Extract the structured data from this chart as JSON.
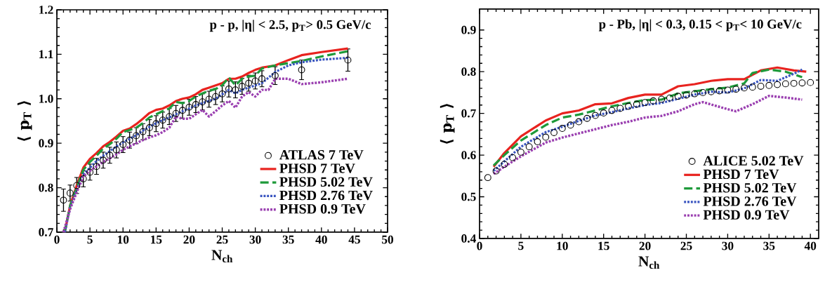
{
  "chart_data": [
    {
      "type": "line",
      "xlabel": "N$_{ch}$",
      "ylabel": "⟨ p$_{T}$ ⟩",
      "annotations": [
        "p - p,  |η| < 2.5,  p$_{T}$> 0.5 GeV/c"
      ],
      "xlim": [
        0,
        50
      ],
      "ylim": [
        0.7,
        1.2
      ],
      "xticks": [
        0,
        5,
        10,
        15,
        20,
        25,
        30,
        35,
        40,
        45,
        50
      ],
      "yticks": [
        0.7,
        0.8,
        0.9,
        {
          "value": 1,
          "label": "1.0"
        },
        1.1,
        1.2
      ],
      "legend": "bottom right",
      "series": [
        {
          "name": "ATLAS 7 TeV",
          "type": "scatter",
          "marker": "circle",
          "color": "#000000",
          "x": [
            1,
            2,
            3,
            4,
            5,
            6,
            7,
            8,
            9,
            10,
            11,
            12,
            13,
            14,
            15,
            16,
            17,
            18,
            19,
            20,
            21,
            22,
            23,
            24,
            25,
            26,
            27,
            28,
            29,
            30,
            31,
            33,
            37,
            44
          ],
          "values": [
            0.772,
            0.788,
            0.805,
            0.82,
            0.835,
            0.848,
            0.862,
            0.873,
            0.885,
            0.897,
            0.907,
            0.917,
            0.926,
            0.935,
            0.944,
            0.952,
            0.96,
            0.967,
            0.974,
            0.981,
            0.987,
            0.993,
            0.999,
            1.005,
            1.011,
            1.022,
            1.02,
            1.028,
            1.035,
            1.04,
            1.045,
            1.052,
            1.065,
            1.087
          ],
          "errors": [
            0.025,
            0.018,
            0.018,
            0.018,
            0.018,
            0.018,
            0.018,
            0.018,
            0.018,
            0.018,
            0.018,
            0.018,
            0.018,
            0.018,
            0.018,
            0.018,
            0.018,
            0.018,
            0.018,
            0.018,
            0.018,
            0.018,
            0.018,
            0.018,
            0.018,
            0.018,
            0.018,
            0.018,
            0.018,
            0.018,
            0.018,
            0.02,
            0.022,
            0.025
          ]
        },
        {
          "name": "PHSD 7 TeV",
          "line_style": "solid",
          "color": "#e8231f",
          "x": [
            1.2,
            2,
            3,
            4,
            5,
            6,
            7,
            8,
            9,
            10,
            11,
            12,
            13,
            14,
            15,
            16,
            17,
            18,
            19,
            20,
            21,
            22,
            23,
            24,
            25,
            26,
            27,
            28,
            29,
            30,
            31,
            33,
            35,
            37,
            40,
            44
          ],
          "values": [
            0.7,
            0.76,
            0.805,
            0.845,
            0.865,
            0.878,
            0.893,
            0.903,
            0.915,
            0.928,
            0.933,
            0.943,
            0.955,
            0.968,
            0.975,
            0.978,
            0.985,
            0.995,
            1.0,
            1.003,
            1.01,
            1.02,
            1.025,
            1.03,
            1.035,
            1.045,
            1.045,
            1.05,
            1.058,
            1.065,
            1.07,
            1.075,
            1.087,
            1.098,
            1.105,
            1.113
          ]
        },
        {
          "name": "PHSD 5.02 TeV",
          "line_style": "dashed",
          "color": "#1e9a3a",
          "x": [
            1.2,
            2,
            3,
            4,
            5,
            6,
            7,
            8,
            9,
            10,
            11,
            12,
            13,
            14,
            15,
            16,
            17,
            18,
            19,
            20,
            21,
            22,
            23,
            24,
            25,
            26,
            27,
            28,
            29,
            30,
            31,
            33,
            35,
            37,
            40,
            44
          ],
          "values": [
            0.7,
            0.76,
            0.8,
            0.84,
            0.858,
            0.872,
            0.888,
            0.898,
            0.91,
            0.925,
            0.93,
            0.935,
            0.945,
            0.958,
            0.965,
            0.972,
            0.978,
            0.993,
            0.99,
            0.995,
            1.005,
            1.012,
            1.018,
            1.022,
            1.03,
            1.048,
            1.03,
            1.045,
            1.05,
            1.052,
            1.068,
            1.075,
            1.08,
            1.085,
            1.095,
            1.107
          ]
        },
        {
          "name": "PHSD 2.76 TeV",
          "line_style": "dotted",
          "color": "#3a55c0",
          "x": [
            1.2,
            2,
            3,
            4,
            5,
            6,
            7,
            8,
            9,
            10,
            11,
            12,
            13,
            14,
            15,
            16,
            17,
            18,
            19,
            20,
            21,
            22,
            23,
            24,
            25,
            26,
            27,
            28,
            29,
            30,
            31,
            33,
            35,
            37,
            40,
            44
          ],
          "values": [
            0.7,
            0.755,
            0.795,
            0.83,
            0.845,
            0.86,
            0.872,
            0.882,
            0.893,
            0.902,
            0.91,
            0.918,
            0.928,
            0.937,
            0.945,
            0.952,
            0.958,
            0.965,
            0.972,
            0.978,
            0.985,
            0.99,
            0.995,
            1.0,
            1.01,
            1.02,
            1.012,
            1.02,
            1.025,
            1.03,
            1.035,
            1.06,
            1.075,
            1.082,
            1.088,
            1.092
          ]
        },
        {
          "name": "PHSD 0.9 TeV",
          "line_style": "dotted",
          "color": "#9a3fb0",
          "x": [
            1,
            2,
            3,
            4,
            5,
            6,
            7,
            8,
            9,
            10,
            11,
            12,
            13,
            14,
            15,
            16,
            17,
            18,
            19,
            20,
            21,
            22,
            23,
            24,
            25,
            26,
            27,
            28,
            29,
            30,
            31,
            32,
            33,
            35,
            37,
            40,
            44
          ],
          "values": [
            0.7,
            0.752,
            0.79,
            0.825,
            0.838,
            0.848,
            0.858,
            0.866,
            0.875,
            0.885,
            0.893,
            0.9,
            0.907,
            0.913,
            0.918,
            0.925,
            0.935,
            0.96,
            0.955,
            0.955,
            0.965,
            0.975,
            0.96,
            0.972,
            0.985,
            0.995,
            0.98,
            1.005,
            1.015,
            1.005,
            1.02,
            1.02,
            1.045,
            1.045,
            1.033,
            1.037,
            1.045
          ]
        }
      ]
    },
    {
      "type": "line",
      "xlabel": "N$_{ch}$",
      "ylabel": "⟨ p$_{T}$ ⟩",
      "annotations": [
        "p - Pb, |η| < 0.3,  0.15 < p$_{T}$< 10 GeV/c"
      ],
      "xlim": [
        0,
        41
      ],
      "ylim": [
        0.4,
        0.95
      ],
      "xticks": [
        0,
        5,
        10,
        15,
        20,
        25,
        30,
        35,
        40
      ],
      "yticks": [
        0.4,
        0.5,
        0.6,
        0.7,
        0.8,
        0.9
      ],
      "legend": "bottom right",
      "series": [
        {
          "name": "ALICE 5.02 TeV",
          "type": "scatter",
          "marker": "circle",
          "color": "#000000",
          "x": [
            1,
            2,
            3,
            4,
            5,
            6,
            7,
            8,
            9,
            10,
            11,
            12,
            13,
            14,
            15,
            16,
            17,
            18,
            19,
            20,
            21,
            22,
            23,
            24,
            25,
            26,
            27,
            28,
            29,
            30,
            31,
            32,
            33,
            34,
            35,
            36,
            37,
            38,
            39,
            40
          ],
          "values": [
            0.546,
            0.562,
            0.578,
            0.594,
            0.607,
            0.62,
            0.632,
            0.643,
            0.654,
            0.664,
            0.672,
            0.68,
            0.688,
            0.695,
            0.701,
            0.707,
            0.712,
            0.717,
            0.722,
            0.726,
            0.73,
            0.734,
            0.737,
            0.741,
            0.744,
            0.747,
            0.75,
            0.752,
            0.754,
            0.756,
            0.758,
            0.761,
            0.763,
            0.765,
            0.767,
            0.769,
            0.771,
            0.772,
            0.773,
            0.774
          ]
        },
        {
          "name": "PHSD 7 TeV",
          "line_style": "solid",
          "color": "#e8231f",
          "x": [
            1.7,
            3,
            5,
            8,
            10,
            12,
            14,
            16,
            18,
            20,
            22,
            24,
            26,
            28,
            30,
            32,
            34,
            36,
            38,
            39.5
          ],
          "values": [
            0.572,
            0.605,
            0.645,
            0.683,
            0.7,
            0.707,
            0.722,
            0.724,
            0.737,
            0.745,
            0.745,
            0.765,
            0.77,
            0.778,
            0.782,
            0.782,
            0.803,
            0.81,
            0.803,
            0.8
          ]
        },
        {
          "name": "PHSD 5.02 TeV",
          "line_style": "dashed",
          "color": "#1e9a3a",
          "x": [
            1.7,
            3,
            5,
            8,
            10,
            12,
            14,
            16,
            18,
            20,
            22,
            24,
            26,
            28,
            30,
            32,
            33,
            35,
            37,
            39
          ],
          "values": [
            0.575,
            0.6,
            0.635,
            0.672,
            0.69,
            0.697,
            0.707,
            0.717,
            0.725,
            0.732,
            0.733,
            0.748,
            0.753,
            0.758,
            0.762,
            0.772,
            0.797,
            0.805,
            0.8,
            0.787
          ]
        },
        {
          "name": "PHSD 2.76 TeV",
          "line_style": "dotted",
          "color": "#3a55c0",
          "x": [
            1.7,
            3,
            5,
            8,
            10,
            12,
            14,
            16,
            18,
            20,
            22,
            24,
            26,
            28,
            30,
            32,
            34,
            36,
            38,
            39
          ],
          "values": [
            0.562,
            0.585,
            0.62,
            0.655,
            0.668,
            0.682,
            0.695,
            0.703,
            0.712,
            0.72,
            0.725,
            0.735,
            0.745,
            0.752,
            0.75,
            0.76,
            0.78,
            0.778,
            0.795,
            0.805
          ]
        },
        {
          "name": "PHSD 0.9 TeV",
          "line_style": "dotted",
          "color": "#9a3fb0",
          "x": [
            1.7,
            3,
            5,
            8,
            10,
            12,
            14,
            16,
            18,
            20,
            22,
            24,
            26,
            27,
            30,
            31,
            33,
            35,
            37,
            39
          ],
          "values": [
            0.555,
            0.572,
            0.597,
            0.63,
            0.642,
            0.652,
            0.662,
            0.672,
            0.68,
            0.69,
            0.694,
            0.705,
            0.722,
            0.727,
            0.71,
            0.705,
            0.722,
            0.742,
            0.738,
            0.733
          ]
        }
      ]
    }
  ]
}
